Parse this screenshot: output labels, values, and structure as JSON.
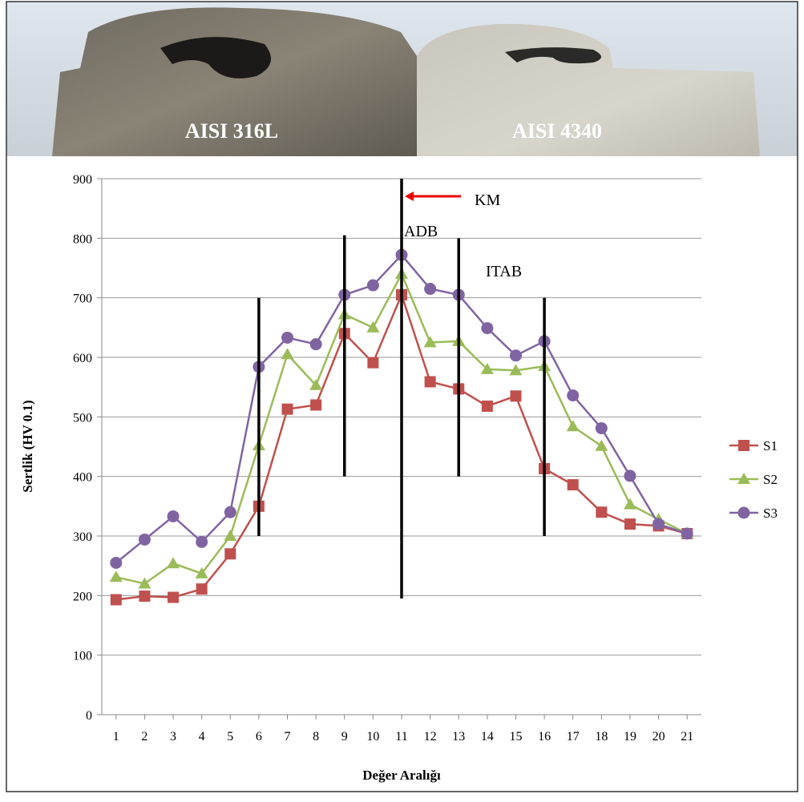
{
  "chart_data": {
    "type": "line",
    "photo_labels": [
      "AISI 316L",
      "AISI 4340"
    ],
    "ylabel": "Sertlik (HV 0.1)",
    "xlabel": "Değer Aralığı",
    "x": [
      1,
      2,
      3,
      4,
      5,
      6,
      7,
      8,
      9,
      10,
      11,
      12,
      13,
      14,
      15,
      16,
      17,
      18,
      19,
      20,
      21
    ],
    "xlim": [
      0.5,
      21.5
    ],
    "xticks": [
      1,
      2,
      3,
      4,
      5,
      6,
      7,
      8,
      9,
      10,
      11,
      12,
      13,
      14,
      15,
      16,
      17,
      18,
      19,
      20,
      21
    ],
    "ylim": [
      0,
      900
    ],
    "yticks": [
      0,
      100,
      200,
      300,
      400,
      500,
      600,
      700,
      800,
      900
    ],
    "grid": true,
    "legend": "right",
    "series": [
      {
        "name": "S1",
        "color": "#c0504d",
        "marker": "square",
        "values": [
          193,
          199,
          197,
          211,
          270,
          350,
          513,
          520,
          640,
          591,
          705,
          559,
          547,
          518,
          535,
          413,
          386,
          340,
          320,
          317,
          304
        ]
      },
      {
        "name": "S2",
        "color": "#9bbb59",
        "marker": "triangle",
        "values": [
          231,
          220,
          254,
          237,
          300,
          452,
          605,
          553,
          672,
          650,
          740,
          625,
          627,
          580,
          578,
          585,
          484,
          451,
          353,
          328,
          304
        ]
      },
      {
        "name": "S3",
        "color": "#8064a2",
        "marker": "circle",
        "values": [
          255,
          294,
          333,
          290,
          340,
          584,
          633,
          622,
          705,
          721,
          772,
          715,
          705,
          649,
          603,
          627,
          536,
          481,
          401,
          320,
          304
        ]
      }
    ],
    "vertical_lines": [
      {
        "x": 6,
        "ymin": 300,
        "ymax": 700
      },
      {
        "x": 9,
        "ymin": 400,
        "ymax": 805
      },
      {
        "x": 11,
        "ymin": 195,
        "ymax": 900
      },
      {
        "x": 13,
        "ymin": 400,
        "ymax": 800
      },
      {
        "x": 16,
        "ymin": 300,
        "ymax": 700
      }
    ],
    "annotations": [
      "KM",
      "ADB",
      "ITAB"
    ]
  }
}
